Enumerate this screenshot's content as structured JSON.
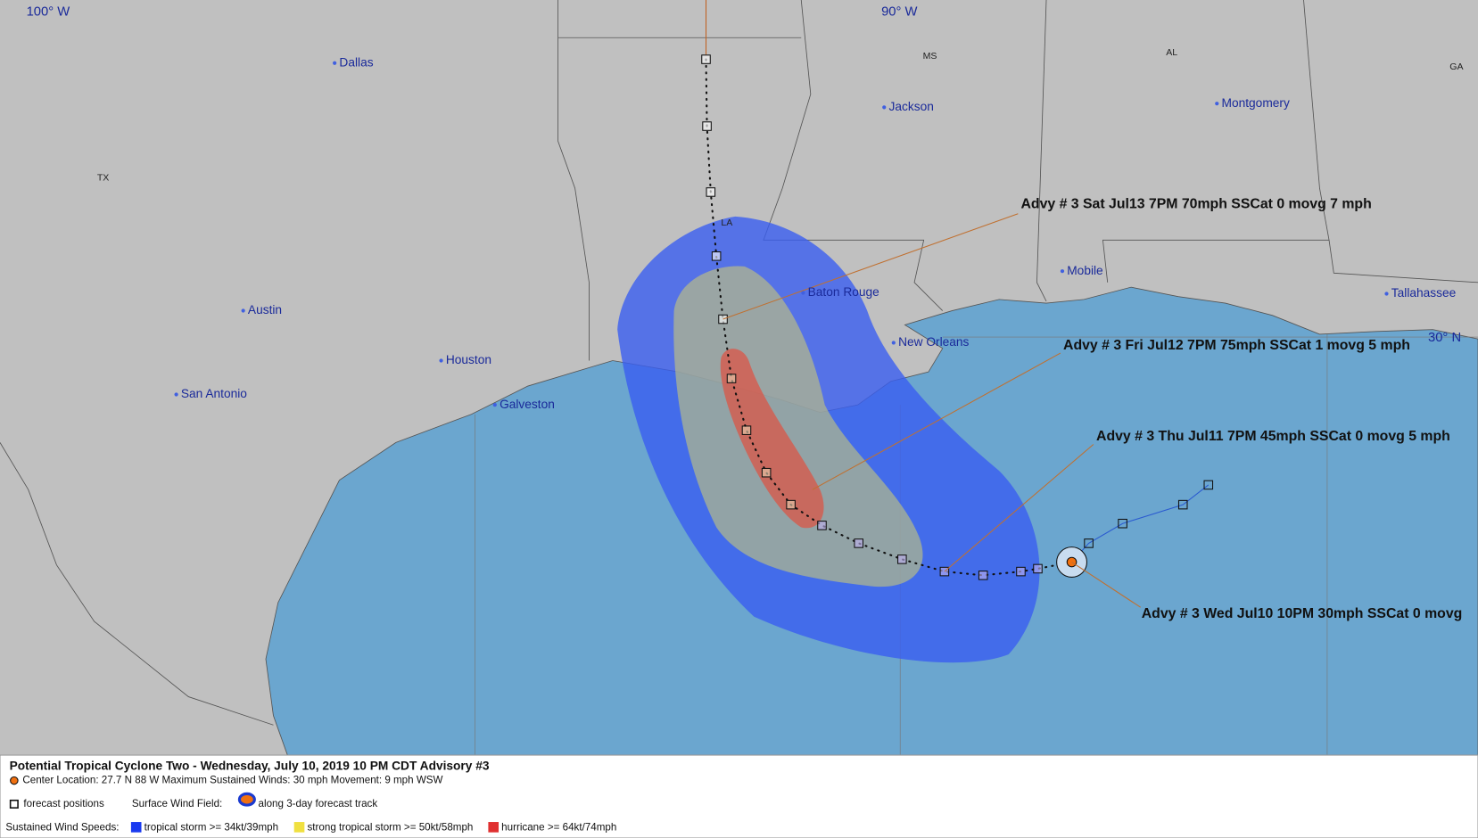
{
  "map": {
    "lon_labels": [
      "100° W",
      "90° W"
    ],
    "lat_labels": [
      "30° N"
    ],
    "states": [
      "TX",
      "LA",
      "MS",
      "AL",
      "GA"
    ],
    "cities": [
      "Dallas",
      "Jackson",
      "Montgomery",
      "Austin",
      "Houston",
      "San Antonio",
      "Galveston",
      "Baton Rouge",
      "New Orleans",
      "Mobile",
      "Tallahassee"
    ],
    "advisories": [
      "Advy # 3 Sat Jul13 7PM  70mph SSCat 0 movg 7 mph",
      "Advy # 3 Fri Jul12 7PM  75mph SSCat 1 movg 5 mph",
      "Advy # 3 Thu Jul11 7PM  45mph SSCat 0 movg 5 mph",
      "Advy # 3 Wed Jul10 10PM  30mph SSCat 0 movg"
    ]
  },
  "legend": {
    "title": "Potential Tropical Cyclone Two  -  Wednesday, July 10, 2019  10 PM CDT   Advisory #3",
    "details": "Center Location: 27.7 N  88 W   Maximum Sustained Winds: 30 mph   Movement: 9 mph WSW",
    "forecast_positions": "forecast positions",
    "wind_field_label": "Surface Wind Field:",
    "wind_field_track": "along 3-day forecast track",
    "speeds_label": "Sustained Wind Speeds:",
    "speed_classes": [
      "tropical storm >= 34kt/39mph",
      "strong tropical storm >= 50kt/58mph",
      "hurricane >= 64kt/74mph"
    ]
  }
}
